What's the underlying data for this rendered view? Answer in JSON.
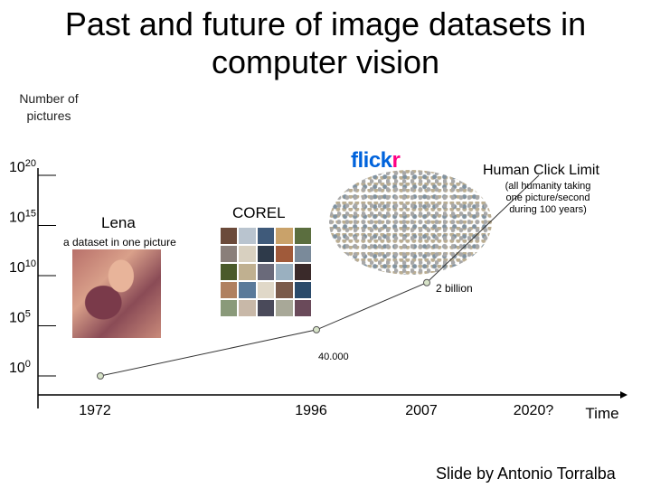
{
  "page": {
    "title": "Past and future of image datasets in computer vision",
    "credit": "Slide by Antonio Torralba"
  },
  "logos": {
    "flickr": "flickr"
  },
  "colors": {
    "flickr_blue": "#0063dc",
    "flickr_pink": "#ff0084",
    "axis": "#000000",
    "line": "#333333",
    "marker": "#d7e3c8"
  },
  "chart_data": {
    "type": "line",
    "ylabel": "Number of pictures",
    "xlabel": "Time",
    "x_ticks": [
      "1972",
      "1996",
      "2007",
      "2020?"
    ],
    "y_scale": "log10",
    "y_ticks": [
      {
        "base": "10",
        "exp": "0"
      },
      {
        "base": "10",
        "exp": "5"
      },
      {
        "base": "10",
        "exp": "10"
      },
      {
        "base": "10",
        "exp": "15"
      },
      {
        "base": "10",
        "exp": "20"
      }
    ],
    "points": [
      {
        "x": "1972",
        "y": 1,
        "label": "Lena",
        "note": "a dataset in one picture"
      },
      {
        "x": "1996",
        "y": 40000,
        "label": "COREL",
        "value_label": "40.000"
      },
      {
        "x": "2007",
        "y": 2000000000,
        "label": "flickr",
        "value_label": "2 billion"
      },
      {
        "x": "2020?",
        "y": 1e+20,
        "label": "Human Click Limit",
        "note": "(all humanity taking one picture/second during 100 years)"
      }
    ]
  }
}
